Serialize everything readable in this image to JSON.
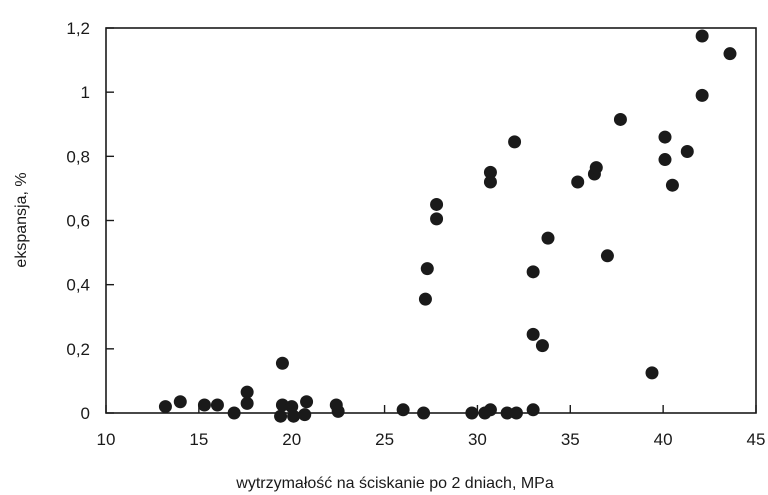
{
  "chart_data": {
    "type": "scatter",
    "title": "",
    "xlabel": "wytrzymałość na ściskanie po 2 dniach, MPa",
    "ylabel": "ekspansja, %",
    "xlim": [
      10,
      45
    ],
    "ylim": [
      0,
      1.2
    ],
    "x_ticks": [
      10,
      15,
      20,
      25,
      30,
      35,
      40,
      45
    ],
    "x_tick_labels": [
      "10",
      "15",
      "20",
      "25",
      "30",
      "35",
      "40",
      "45"
    ],
    "y_ticks": [
      0,
      0.2,
      0.4,
      0.6,
      0.8,
      1.0,
      1.2
    ],
    "y_tick_labels": [
      "0",
      "0,2",
      "0,4",
      "0,6",
      "0,8",
      "1",
      "1,2"
    ],
    "grid": false,
    "legend": "none",
    "marker_color": "#1a1a1a",
    "series": [
      {
        "points": [
          [
            13.2,
            0.02
          ],
          [
            14.0,
            0.035
          ],
          [
            15.3,
            0.025
          ],
          [
            16.0,
            0.025
          ],
          [
            16.9,
            0.0
          ],
          [
            17.6,
            0.065
          ],
          [
            17.6,
            0.03
          ],
          [
            19.5,
            0.155
          ],
          [
            19.5,
            0.025
          ],
          [
            19.4,
            -0.01
          ],
          [
            20.0,
            0.02
          ],
          [
            20.1,
            -0.01
          ],
          [
            20.8,
            0.035
          ],
          [
            20.7,
            -0.005
          ],
          [
            22.4,
            0.025
          ],
          [
            22.5,
            0.005
          ],
          [
            26.0,
            0.01
          ],
          [
            27.1,
            0.0
          ],
          [
            27.2,
            0.355
          ],
          [
            27.3,
            0.45
          ],
          [
            27.8,
            0.65
          ],
          [
            27.8,
            0.605
          ],
          [
            29.7,
            0.0
          ],
          [
            30.4,
            0.0
          ],
          [
            30.7,
            0.01
          ],
          [
            30.7,
            0.75
          ],
          [
            30.7,
            0.72
          ],
          [
            31.6,
            0.0
          ],
          [
            32.1,
            0.0
          ],
          [
            32.0,
            0.845
          ],
          [
            33.0,
            0.01
          ],
          [
            33.0,
            0.245
          ],
          [
            33.0,
            0.44
          ],
          [
            33.5,
            0.21
          ],
          [
            33.8,
            0.545
          ],
          [
            35.4,
            0.72
          ],
          [
            36.3,
            0.745
          ],
          [
            36.4,
            0.765
          ],
          [
            37.0,
            0.49
          ],
          [
            37.7,
            0.915
          ],
          [
            39.4,
            0.125
          ],
          [
            40.1,
            0.86
          ],
          [
            40.1,
            0.79
          ],
          [
            40.5,
            0.71
          ],
          [
            41.3,
            0.815
          ],
          [
            42.1,
            1.175
          ],
          [
            42.1,
            0.99
          ],
          [
            43.6,
            1.12
          ]
        ]
      }
    ]
  }
}
